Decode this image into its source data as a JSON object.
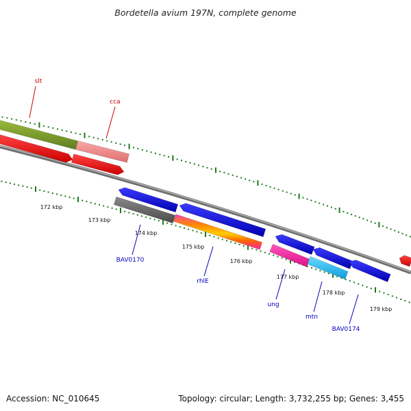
{
  "title": "Bordetella avium 197N, complete genome",
  "footer": {
    "accession": "Accession: NC_010645",
    "summary": "Topology: circular; Length: 3,732,255 bp; Genes: 3,455"
  },
  "colors": {
    "backbone": "#888888",
    "tick": "#1a7a1a",
    "label_red": "#cc0000",
    "label_blue": "#0000bb"
  },
  "chart_data": {
    "type": "linear-genome-map",
    "region_kbp": [
      171,
      180
    ],
    "scale_ticks": [
      {
        "label": "172 kbp"
      },
      {
        "label": "173 kbp"
      },
      {
        "label": "174 kbp"
      },
      {
        "label": "175 kbp"
      },
      {
        "label": "176 kbp"
      },
      {
        "label": "177 kbp"
      },
      {
        "label": "178 kbp"
      },
      {
        "label": "179 kbp"
      }
    ],
    "features": [
      {
        "name": "slt",
        "color": "#7a9a2a",
        "strand": "forward",
        "track": 2
      },
      {
        "name": "cca",
        "color": "#f08888",
        "strand": "forward",
        "track": 2
      },
      {
        "name": "",
        "color": "#ff0000",
        "strand": "forward",
        "track": 1
      },
      {
        "name": "",
        "color": "#ff0000",
        "strand": "forward",
        "track": 1
      },
      {
        "name": "",
        "color": "#ff0000",
        "strand": "forward",
        "track": 1
      },
      {
        "name": "",
        "color": "#0000ff",
        "strand": "reverse",
        "track": 1
      },
      {
        "name": "BAV0170",
        "color": "#6a6a6a",
        "strand": "reverse",
        "track": 2
      },
      {
        "name": "",
        "color": "#0000ff",
        "strand": "reverse",
        "track": 1
      },
      {
        "name": "rhlE",
        "color": "#ff33aa",
        "strand": "reverse",
        "track": 2,
        "multicolor": true
      },
      {
        "name": "",
        "color": "#0000ff",
        "strand": "reverse",
        "track": 1
      },
      {
        "name": "ung",
        "color": "#ff22aa",
        "strand": "reverse",
        "track": 2
      },
      {
        "name": "",
        "color": "#0000ff",
        "strand": "reverse",
        "track": 1
      },
      {
        "name": "mtn",
        "color": "#22ccff",
        "strand": "reverse",
        "track": 2
      },
      {
        "name": "BAV0174",
        "color": "#0000ff",
        "strand": "reverse",
        "track": 1
      }
    ]
  }
}
